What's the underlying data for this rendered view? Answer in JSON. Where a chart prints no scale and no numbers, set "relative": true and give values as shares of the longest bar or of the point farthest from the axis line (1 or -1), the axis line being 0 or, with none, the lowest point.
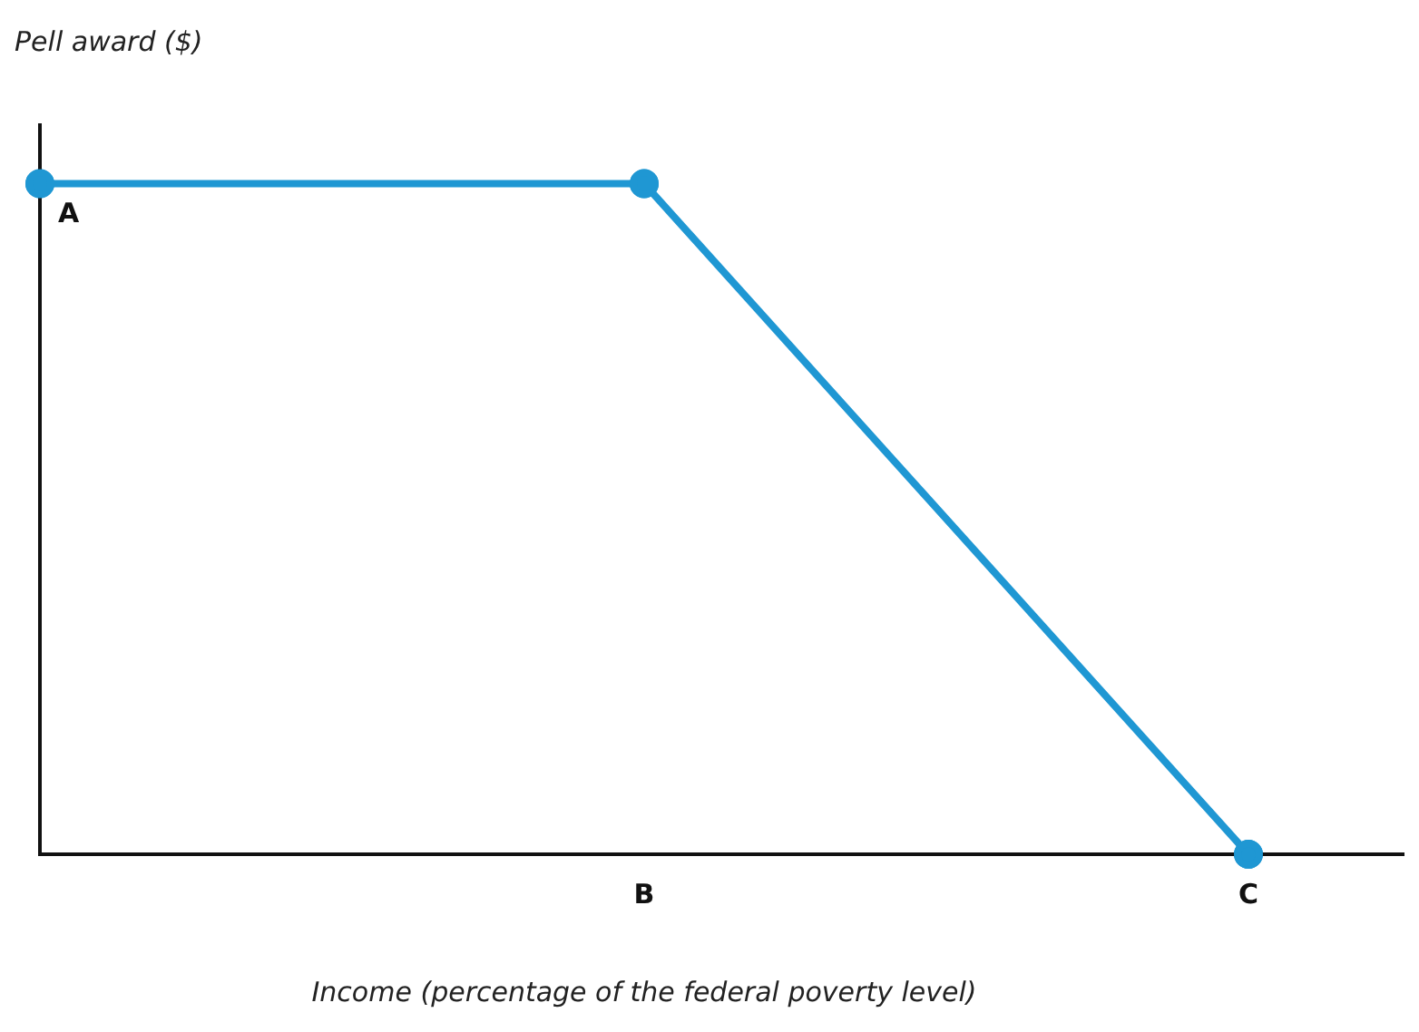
{
  "chart_data": {
    "type": "line",
    "relative": true,
    "xlabel": "Income (percentage of the federal poverty level)",
    "ylabel": "Pell award ($)",
    "categories": [
      null,
      "B",
      "C"
    ],
    "series": [
      {
        "color": "#1f97d3",
        "values": [
          1,
          1,
          0
        ]
      }
    ],
    "annotations": [
      "A"
    ],
    "marker": "circle",
    "grid": false,
    "legend": false
  }
}
